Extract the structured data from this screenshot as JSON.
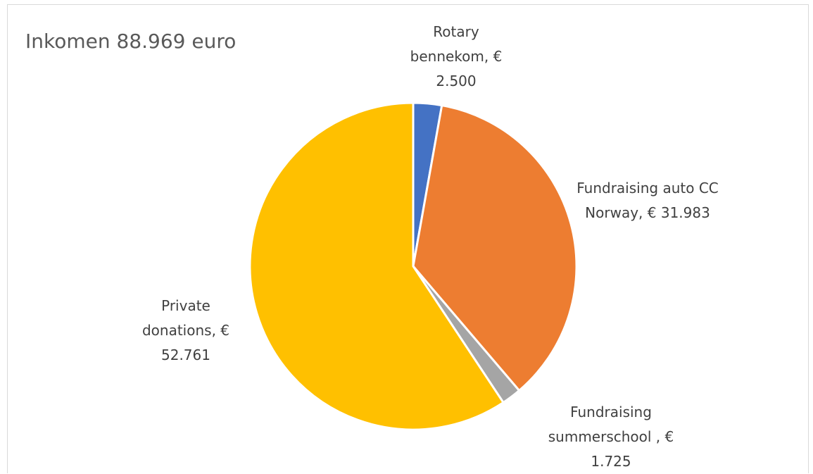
{
  "chart_data": {
    "type": "pie",
    "title": "Inkomen 88.969 euro",
    "categories": [
      "Rotary bennekom,",
      "Fundraising auto CC Norway,",
      "Fundraising summerschool ,",
      "Private donations,"
    ],
    "values": [
      2500,
      31983,
      1725,
      52761
    ],
    "value_labels": [
      "€ 2.500",
      "€ 31.983",
      "€ 1.725",
      "€ 52.761"
    ],
    "colors": [
      "#4472c4",
      "#ed7d31",
      "#a5a5a5",
      "#ffc000"
    ]
  }
}
